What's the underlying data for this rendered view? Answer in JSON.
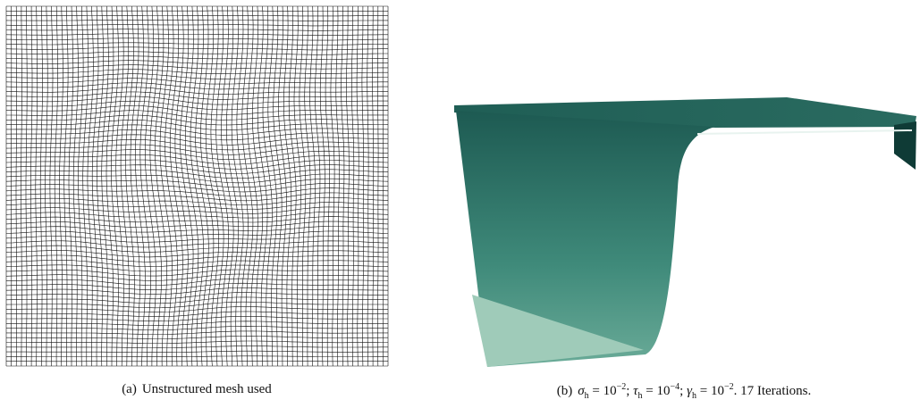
{
  "figures": [
    {
      "label": "(a)",
      "caption": [
        {
          "text": "Unstructured mesh used",
          "style": "text"
        }
      ]
    },
    {
      "label": "(b)",
      "caption": [
        {
          "text": "σ",
          "style": "math"
        },
        {
          "text": "h",
          "style": "sub"
        },
        {
          "text": " = 10",
          "style": "text"
        },
        {
          "text": "−2",
          "style": "sup"
        },
        {
          "text": "; ",
          "style": "text"
        },
        {
          "text": "τ",
          "style": "math"
        },
        {
          "text": "h",
          "style": "sub"
        },
        {
          "text": " = 10",
          "style": "text"
        },
        {
          "text": "−4",
          "style": "sup"
        },
        {
          "text": "; ",
          "style": "text"
        },
        {
          "text": "γ",
          "style": "math"
        },
        {
          "text": "h",
          "style": "sub"
        },
        {
          "text": " = 10",
          "style": "text"
        },
        {
          "text": "−2",
          "style": "sup"
        },
        {
          "text": ". 17 Iterations.",
          "style": "text"
        }
      ]
    }
  ]
}
